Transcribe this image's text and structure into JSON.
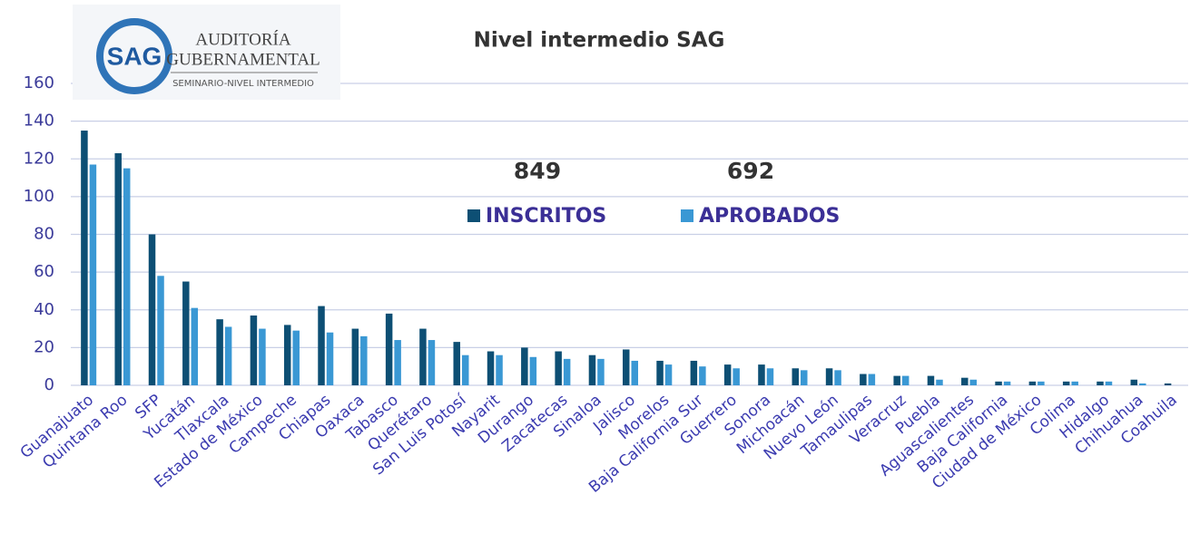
{
  "chart_data": {
    "type": "bar",
    "title": "Nivel intermedio SAG",
    "logo": {
      "mark": "SAG",
      "line1": "AUDITORÍA",
      "line2": "GUBERNAMENTAL",
      "line3": "SEMINARIO-NIVEL INTERMEDIO"
    },
    "categories": [
      "Guanajuato",
      "Quintana Roo",
      "SFP",
      "Yucatán",
      "Tlaxcala",
      "Estado de México",
      "Campeche",
      "Chiapas",
      "Oaxaca",
      "Tabasco",
      "Querétaro",
      "San Luis Potosí",
      "Nayarit",
      "Durango",
      "Zacatecas",
      "Sinaloa",
      "Jalisco",
      "Morelos",
      "Baja California Sur",
      "Guerrero",
      "Sonora",
      "Michoacán",
      "Nuevo León",
      "Tamaulipas",
      "Veracruz",
      "Puebla",
      "Aguascalientes",
      "Baja California",
      "Ciudad de México",
      "Colima",
      "Hidalgo",
      "Chihuahua",
      "Coahuila"
    ],
    "series": [
      {
        "name": "INSCRITOS",
        "color": "#0d4f74",
        "total": 849,
        "values": [
          135,
          123,
          80,
          55,
          35,
          37,
          32,
          42,
          30,
          38,
          30,
          23,
          18,
          20,
          18,
          16,
          19,
          13,
          13,
          11,
          11,
          9,
          9,
          6,
          5,
          5,
          4,
          2,
          2,
          2,
          2,
          3,
          1
        ]
      },
      {
        "name": "APROBADOS",
        "color": "#3a98d4",
        "total": 692,
        "values": [
          117,
          115,
          58,
          41,
          31,
          30,
          29,
          28,
          26,
          24,
          24,
          16,
          16,
          15,
          14,
          14,
          13,
          11,
          10,
          9,
          9,
          8,
          8,
          6,
          5,
          3,
          3,
          2,
          2,
          2,
          2,
          1,
          0
        ]
      }
    ],
    "ylim": [
      0,
      160
    ],
    "yticks": [
      0,
      20,
      40,
      60,
      80,
      100,
      120,
      140,
      160
    ],
    "grid": true
  }
}
